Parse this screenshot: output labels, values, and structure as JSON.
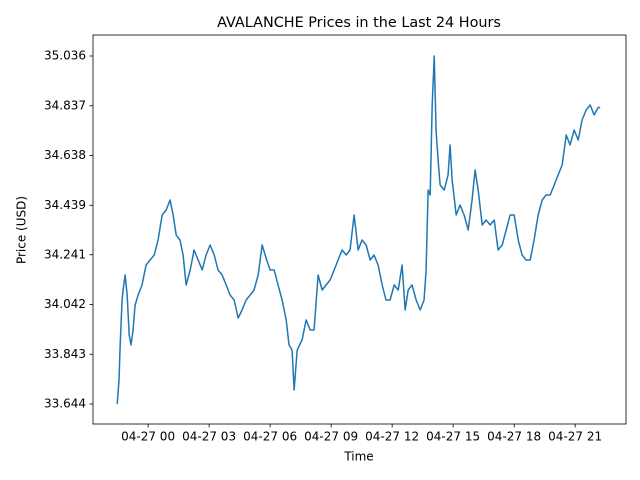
{
  "chart_data": {
    "type": "line",
    "title": "AVALANCHE Prices in the Last 24 Hours",
    "x_label": "Time",
    "y_label": "Price (USD)",
    "x": [
      -1.52,
      -1.43,
      -1.38,
      -1.28,
      -1.23,
      -1.13,
      -1.03,
      -0.93,
      -0.84,
      -0.74,
      -0.64,
      -0.49,
      -0.3,
      -0.1,
      0.1,
      0.3,
      0.49,
      0.69,
      0.89,
      1.08,
      1.23,
      1.38,
      1.57,
      1.72,
      1.87,
      2.07,
      2.26,
      2.46,
      2.66,
      2.85,
      3.05,
      3.25,
      3.44,
      3.64,
      3.84,
      4.03,
      4.23,
      4.43,
      4.62,
      4.82,
      5.02,
      5.21,
      5.41,
      5.61,
      5.8,
      6.0,
      6.2,
      6.39,
      6.59,
      6.79,
      6.93,
      7.08,
      7.18,
      7.33,
      7.57,
      7.77,
      7.97,
      8.16,
      8.36,
      8.56,
      8.75,
      8.95,
      9.15,
      9.34,
      9.54,
      9.74,
      9.93,
      10.13,
      10.33,
      10.52,
      10.72,
      10.92,
      11.11,
      11.31,
      11.51,
      11.7,
      11.9,
      12.1,
      12.3,
      12.49,
      12.64,
      12.79,
      12.98,
      13.18,
      13.38,
      13.57,
      13.67,
      13.77,
      13.87,
      13.97,
      14.07,
      14.16,
      14.26,
      14.36,
      14.56,
      14.75,
      14.85,
      14.95,
      15.15,
      15.34,
      15.54,
      15.74,
      15.93,
      16.08,
      16.23,
      16.43,
      16.62,
      16.82,
      17.02,
      17.21,
      17.41,
      17.61,
      17.8,
      18.0,
      18.2,
      18.39,
      18.59,
      18.79,
      18.98,
      19.18,
      19.38,
      19.57,
      19.77,
      19.97,
      20.16,
      20.36,
      20.56,
      20.75,
      20.95,
      21.15,
      21.34,
      21.54,
      21.74,
      21.93,
      22.13,
      22.23
    ],
    "series": [
      {
        "name": "AVALANCHE",
        "color": "#1f77b4",
        "values": [
          33.644,
          33.74,
          33.868,
          34.06,
          34.1,
          34.16,
          34.08,
          33.92,
          33.88,
          33.94,
          34.04,
          34.08,
          34.12,
          34.2,
          34.22,
          34.24,
          34.3,
          34.4,
          34.42,
          34.46,
          34.4,
          34.32,
          34.3,
          34.24,
          34.12,
          34.18,
          34.26,
          34.22,
          34.18,
          34.24,
          34.28,
          34.24,
          34.18,
          34.16,
          34.12,
          34.08,
          34.06,
          33.988,
          34.02,
          34.06,
          34.08,
          34.1,
          34.16,
          34.28,
          34.228,
          34.18,
          34.18,
          34.12,
          34.06,
          33.98,
          33.88,
          33.86,
          33.7,
          33.86,
          33.9,
          33.98,
          33.94,
          33.94,
          34.16,
          34.1,
          34.12,
          34.14,
          34.18,
          34.22,
          34.26,
          34.24,
          34.26,
          34.4,
          34.26,
          34.3,
          34.28,
          34.22,
          34.24,
          34.2,
          34.12,
          34.06,
          34.06,
          34.12,
          34.1,
          34.2,
          34.02,
          34.1,
          34.12,
          34.06,
          34.02,
          34.06,
          34.18,
          34.5,
          34.48,
          34.84,
          35.036,
          34.74,
          34.62,
          34.52,
          34.5,
          34.56,
          34.68,
          34.54,
          34.4,
          34.44,
          34.4,
          34.34,
          34.46,
          34.58,
          34.5,
          34.36,
          34.38,
          34.36,
          34.38,
          34.26,
          34.28,
          34.34,
          34.4,
          34.4,
          34.3,
          34.24,
          34.22,
          34.22,
          34.3,
          34.4,
          34.46,
          34.48,
          34.48,
          34.52,
          34.56,
          34.6,
          34.72,
          34.68,
          34.74,
          34.7,
          34.78,
          34.82,
          34.84,
          34.8,
          34.83,
          34.83
        ]
      }
    ],
    "xlim": [
      -2.71,
      23.5
    ],
    "xticks": [
      {
        "value": 0,
        "label": "04-27 00"
      },
      {
        "value": 3,
        "label": "04-27 03"
      },
      {
        "value": 6,
        "label": "04-27 06"
      },
      {
        "value": 9,
        "label": "04-27 09"
      },
      {
        "value": 12,
        "label": "04-27 12"
      },
      {
        "value": 15,
        "label": "04-27 15"
      },
      {
        "value": 18,
        "label": "04-27 18"
      },
      {
        "value": 21,
        "label": "04-27 21"
      }
    ],
    "ylim": [
      33.564,
      35.12
    ],
    "yticks": [
      33.644,
      33.843,
      34.042,
      34.241,
      34.439,
      34.638,
      34.837,
      35.036
    ],
    "grid": false
  }
}
